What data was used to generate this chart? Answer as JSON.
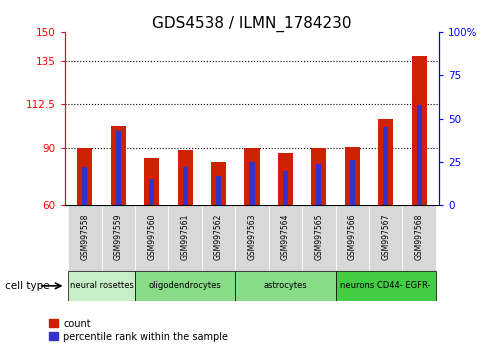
{
  "title": "GDS4538 / ILMN_1784230",
  "samples": [
    "GSM997558",
    "GSM997559",
    "GSM997560",
    "GSM997561",
    "GSM997562",
    "GSM997563",
    "GSM997564",
    "GSM997565",
    "GSM997566",
    "GSM997567",
    "GSM997568"
  ],
  "count_values": [
    90.0,
    101.0,
    84.5,
    88.5,
    82.5,
    90.0,
    87.0,
    90.0,
    90.5,
    105.0,
    137.5
  ],
  "percentile_values": [
    22,
    43,
    15,
    22,
    17,
    25,
    20,
    24,
    26,
    45,
    58
  ],
  "left_ylim": [
    60,
    150
  ],
  "right_ylim": [
    0,
    100
  ],
  "left_yticks": [
    60,
    90,
    112.5,
    135,
    150
  ],
  "right_yticks": [
    0,
    25,
    50,
    75,
    100
  ],
  "right_yticklabels": [
    "0",
    "25",
    "50",
    "75",
    "100%"
  ],
  "bar_color": "#CC2200",
  "percentile_color": "#3333CC",
  "grid_yticks": [
    90,
    112.5,
    135
  ],
  "cell_type_labels": [
    "neural rosettes",
    "oligodendrocytes",
    "astrocytes",
    "neurons CD44- EGFR-"
  ],
  "cell_type_ranges": [
    [
      0,
      1
    ],
    [
      2,
      4
    ],
    [
      5,
      7
    ],
    [
      8,
      10
    ]
  ],
  "cell_type_colors": [
    "#C8EEC8",
    "#88DC88",
    "#88DC88",
    "#44CC44"
  ],
  "cell_type_label": "cell type",
  "legend_count_label": "count",
  "legend_percentile_label": "percentile rank within the sample",
  "bar_width": 0.45,
  "pct_bar_width": 0.15,
  "title_fontsize": 11,
  "sample_box_color": "#D8D8D8"
}
